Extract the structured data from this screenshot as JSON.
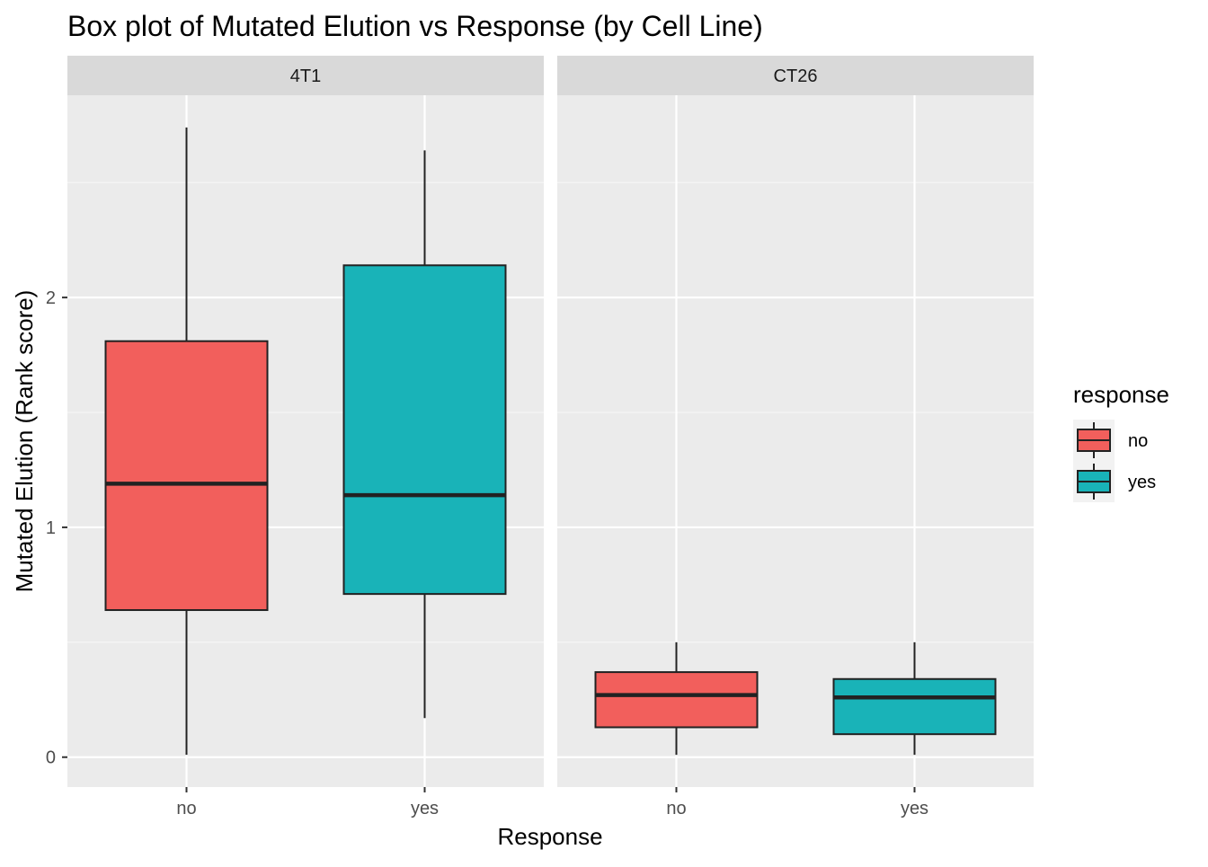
{
  "chart_data": {
    "type": "boxplot",
    "title": "Box plot of Mutated Elution vs Response (by Cell Line)",
    "xlabel": "Response",
    "ylabel": "Mutated Elution (Rank score)",
    "ylim": [
      -0.13,
      2.88
    ],
    "y_ticks": [
      0,
      1,
      2
    ],
    "y_tick_labels": [
      "0",
      "1",
      "2"
    ],
    "categories": [
      "no",
      "yes"
    ],
    "facets": [
      {
        "label": "4T1",
        "boxes": [
          {
            "category": "no",
            "min": 0.01,
            "q1": 0.64,
            "median": 1.19,
            "q3": 1.81,
            "max": 2.74
          },
          {
            "category": "yes",
            "min": 0.17,
            "q1": 0.71,
            "median": 1.14,
            "q3": 2.14,
            "max": 2.64
          }
        ]
      },
      {
        "label": "CT26",
        "boxes": [
          {
            "category": "no",
            "min": 0.01,
            "q1": 0.13,
            "median": 0.27,
            "q3": 0.37,
            "max": 0.5
          },
          {
            "category": "yes",
            "min": 0.01,
            "q1": 0.1,
            "median": 0.26,
            "q3": 0.34,
            "max": 0.5
          }
        ]
      }
    ],
    "legend": {
      "title": "response",
      "position": "right",
      "items": [
        {
          "label": "no",
          "color": "#F8766D"
        },
        {
          "label": "yes",
          "color": "#00BFC4"
        }
      ]
    },
    "colors": {
      "no": "#F25F5C",
      "yes": "#19B3B8"
    },
    "grid": true
  }
}
